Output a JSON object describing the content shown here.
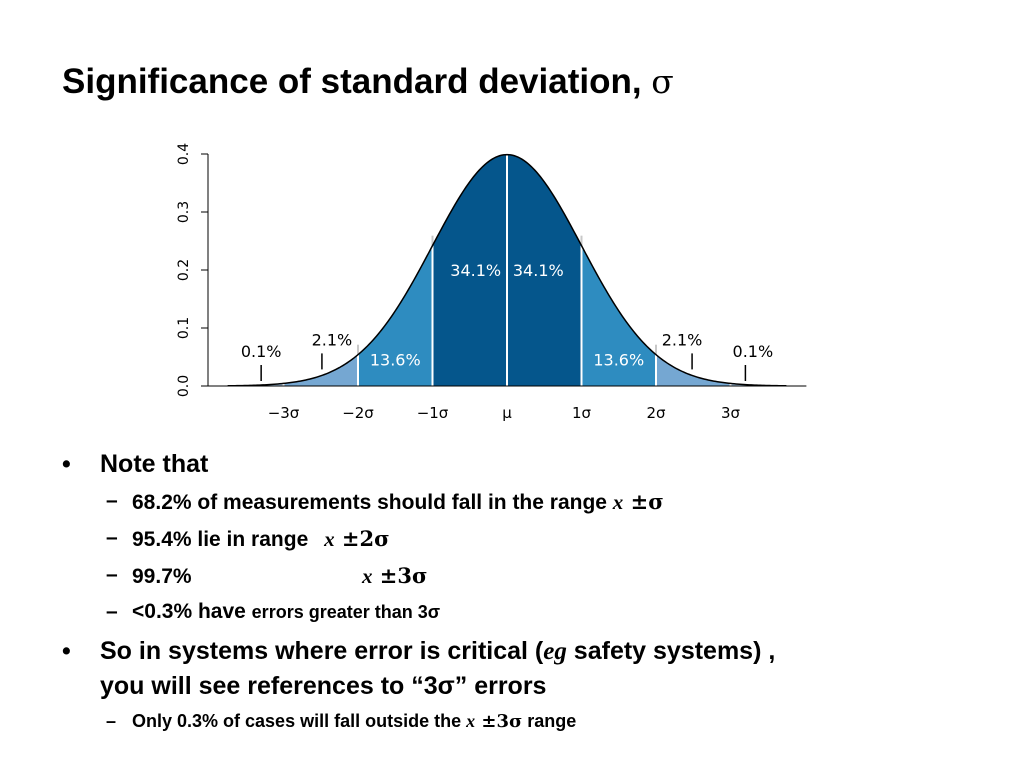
{
  "title": {
    "text": "Significance of standard deviation, ",
    "symbol": "σ"
  },
  "chart_data": {
    "type": "area",
    "distribution": "normal",
    "mean": 0,
    "sd": 1,
    "xlim": [
      -3.75,
      3.75
    ],
    "ylim": [
      0,
      0.4
    ],
    "grid": false,
    "y_ticks": [
      0.0,
      0.1,
      0.2,
      0.3,
      0.4
    ],
    "y_tick_labels": [
      "0.0",
      "0.1",
      "0.2",
      "0.3",
      "0.4"
    ],
    "x_ticks": [
      -3,
      -2,
      -1,
      0,
      1,
      2,
      3
    ],
    "x_tick_labels": [
      "−3σ",
      "−2σ",
      "−1σ",
      "μ",
      "1σ",
      "2σ",
      "3σ"
    ],
    "bands": [
      {
        "from": -3,
        "to": -2,
        "percent": 2.1,
        "label": "2.1%",
        "color": "#75a7d2"
      },
      {
        "from": -2,
        "to": -1,
        "percent": 13.6,
        "label": "13.6%",
        "color": "#2e8cc0"
      },
      {
        "from": -1,
        "to": 0,
        "percent": 34.1,
        "label": "34.1%",
        "color": "#05568c"
      },
      {
        "from": 0,
        "to": 1,
        "percent": 34.1,
        "label": "34.1%",
        "color": "#05568c"
      },
      {
        "from": 1,
        "to": 2,
        "percent": 13.6,
        "label": "13.6%",
        "color": "#2e8cc0"
      },
      {
        "from": 2,
        "to": 3,
        "percent": 2.1,
        "label": "2.1%",
        "color": "#75a7d2"
      }
    ],
    "tails": [
      {
        "side": "left",
        "percent": 0.1,
        "label": "0.1%"
      },
      {
        "side": "right",
        "percent": 0.1,
        "label": "0.1%"
      }
    ],
    "tail_color": "#a8c8e4",
    "curve_color": "#000000"
  },
  "bullets": {
    "note_that": "Note that",
    "b1": {
      "pre": "68.2% of measurements should fall in the range ",
      "x": "x",
      "pm": " ±σ"
    },
    "b2": {
      "pre": "95.4% lie in range ",
      "x": "x",
      "pm": " ±2σ"
    },
    "b3": {
      "pre": "99.7%",
      "x": "x",
      "pm": " ±3σ"
    },
    "b4": {
      "pre": "<0.3% have ",
      "small": "errors greater than 3σ"
    },
    "so": {
      "pre": "So in systems where error is critical (",
      "eg": "eg",
      "post": " safety systems) ,",
      "line2": "you will see references to “3σ” errors"
    },
    "b5": {
      "pre": "Only 0.3% of cases will fall outside the ",
      "x": "x",
      "pm": " ±3σ",
      "post": " range"
    },
    "bullet_mark": "•",
    "dash_mark": "–"
  }
}
